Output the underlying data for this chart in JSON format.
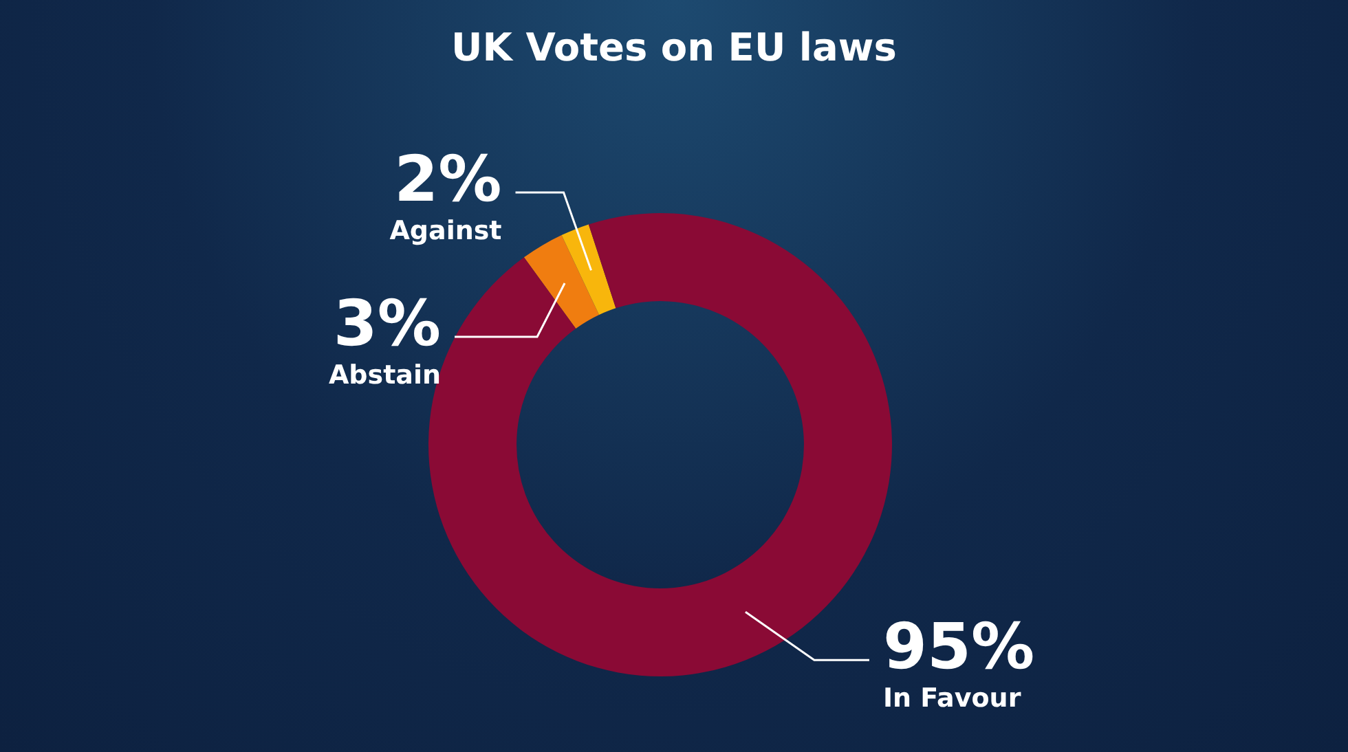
{
  "chart_data": {
    "type": "donut",
    "title": "UK Votes on EU laws",
    "categories": [
      "Abstain",
      "Against",
      "In Favour"
    ],
    "values": [
      3,
      2,
      95
    ],
    "colors": [
      "#f07d10",
      "#f8b60c",
      "#8a0a35"
    ],
    "value_labels": [
      "3%",
      "2%",
      "95%"
    ]
  }
}
